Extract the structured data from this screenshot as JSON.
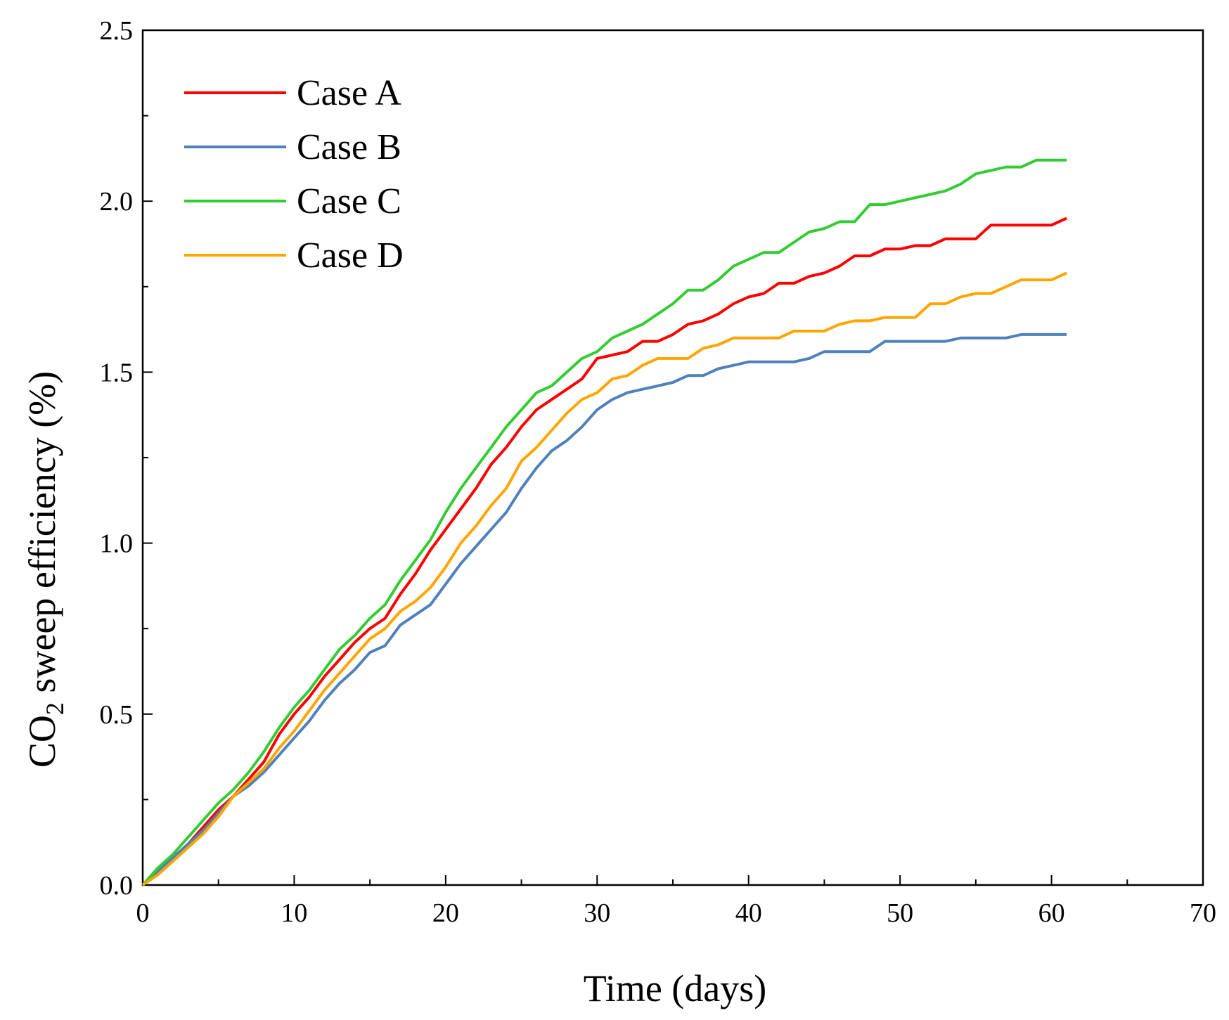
{
  "chart_data": {
    "type": "line",
    "title": "",
    "xlabel": "Time (days)",
    "ylabel_main": "CO",
    "ylabel_sub": "2",
    "ylabel_rest": " sweep efficiency (%)",
    "xlim": [
      0,
      70
    ],
    "ylim": [
      0,
      2.5
    ],
    "xticks": [
      "0",
      "10",
      "20",
      "30",
      "40",
      "50",
      "60",
      "70"
    ],
    "yticks": [
      "0.0",
      "0.5",
      "1.0",
      "1.5",
      "2.0",
      "2.5"
    ],
    "grid": false,
    "legend_position": "top-left",
    "x": [
      0,
      1,
      2,
      3,
      4,
      5,
      6,
      7,
      8,
      9,
      10,
      11,
      12,
      13,
      14,
      15,
      16,
      17,
      18,
      19,
      20,
      21,
      22,
      23,
      24,
      25,
      26,
      27,
      28,
      29,
      30,
      31,
      32,
      33,
      34,
      35,
      36,
      37,
      38,
      39,
      40,
      41,
      42,
      43,
      44,
      45,
      46,
      47,
      48,
      49,
      50,
      51,
      52,
      53,
      54,
      55,
      56,
      57,
      58,
      59,
      60,
      61
    ],
    "series": [
      {
        "name": "Case A",
        "color": "#ff0000",
        "values": [
          0.0,
          0.04,
          0.08,
          0.12,
          0.17,
          0.22,
          0.26,
          0.31,
          0.36,
          0.44,
          0.5,
          0.55,
          0.61,
          0.66,
          0.71,
          0.75,
          0.78,
          0.85,
          0.91,
          0.98,
          1.04,
          1.1,
          1.16,
          1.23,
          1.28,
          1.34,
          1.39,
          1.42,
          1.45,
          1.48,
          1.54,
          1.55,
          1.56,
          1.59,
          1.59,
          1.61,
          1.64,
          1.65,
          1.67,
          1.7,
          1.72,
          1.73,
          1.76,
          1.76,
          1.78,
          1.79,
          1.81,
          1.84,
          1.84,
          1.86,
          1.86,
          1.87,
          1.87,
          1.89,
          1.89,
          1.89,
          1.93,
          1.93,
          1.93,
          1.93,
          1.93,
          1.95
        ]
      },
      {
        "name": "Case B",
        "color": "#4f81bd",
        "values": [
          0.0,
          0.04,
          0.08,
          0.12,
          0.16,
          0.21,
          0.26,
          0.29,
          0.33,
          0.38,
          0.43,
          0.48,
          0.54,
          0.59,
          0.63,
          0.68,
          0.7,
          0.76,
          0.79,
          0.82,
          0.88,
          0.94,
          0.99,
          1.04,
          1.09,
          1.16,
          1.22,
          1.27,
          1.3,
          1.34,
          1.39,
          1.42,
          1.44,
          1.45,
          1.46,
          1.47,
          1.49,
          1.49,
          1.51,
          1.52,
          1.53,
          1.53,
          1.53,
          1.53,
          1.54,
          1.56,
          1.56,
          1.56,
          1.56,
          1.59,
          1.59,
          1.59,
          1.59,
          1.59,
          1.6,
          1.6,
          1.6,
          1.6,
          1.61,
          1.61,
          1.61,
          1.61
        ]
      },
      {
        "name": "Case C",
        "color": "#33cc33",
        "values": [
          0.0,
          0.05,
          0.09,
          0.14,
          0.19,
          0.24,
          0.28,
          0.33,
          0.39,
          0.46,
          0.52,
          0.57,
          0.63,
          0.69,
          0.73,
          0.78,
          0.82,
          0.89,
          0.95,
          1.01,
          1.09,
          1.16,
          1.22,
          1.28,
          1.34,
          1.39,
          1.44,
          1.46,
          1.5,
          1.54,
          1.56,
          1.6,
          1.62,
          1.64,
          1.67,
          1.7,
          1.74,
          1.74,
          1.77,
          1.81,
          1.83,
          1.85,
          1.85,
          1.88,
          1.91,
          1.92,
          1.94,
          1.94,
          1.99,
          1.99,
          2.0,
          2.01,
          2.02,
          2.03,
          2.05,
          2.08,
          2.09,
          2.1,
          2.1,
          2.12,
          2.12,
          2.12
        ]
      },
      {
        "name": "Case D",
        "color": "#ffa500",
        "values": [
          0.0,
          0.03,
          0.07,
          0.11,
          0.15,
          0.2,
          0.26,
          0.3,
          0.34,
          0.4,
          0.45,
          0.51,
          0.57,
          0.62,
          0.67,
          0.72,
          0.75,
          0.8,
          0.83,
          0.87,
          0.93,
          1.0,
          1.05,
          1.11,
          1.16,
          1.24,
          1.28,
          1.33,
          1.38,
          1.42,
          1.44,
          1.48,
          1.49,
          1.52,
          1.54,
          1.54,
          1.54,
          1.57,
          1.58,
          1.6,
          1.6,
          1.6,
          1.6,
          1.62,
          1.62,
          1.62,
          1.64,
          1.65,
          1.65,
          1.66,
          1.66,
          1.66,
          1.7,
          1.7,
          1.72,
          1.73,
          1.73,
          1.75,
          1.77,
          1.77,
          1.77,
          1.79
        ]
      }
    ]
  }
}
